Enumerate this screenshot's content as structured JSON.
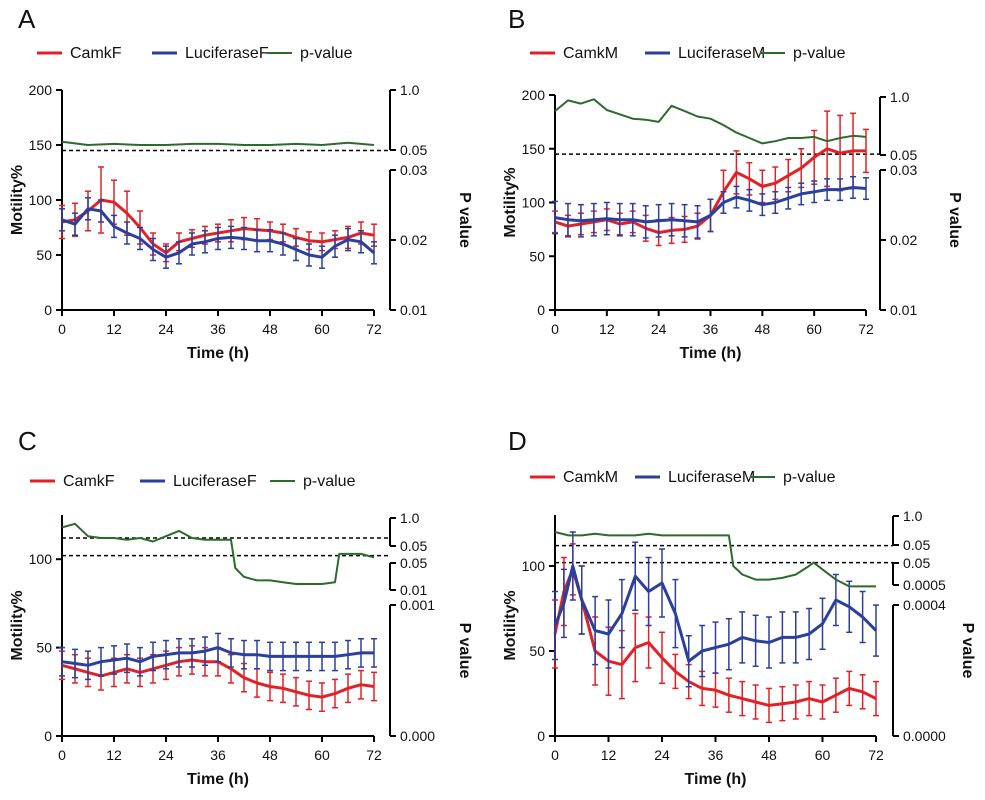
{
  "colors": {
    "camk": "#e02228",
    "luciferase": "#2b3f9e",
    "pvalue": "#2d6a2d",
    "axis": "#000000"
  },
  "chart_data": [
    {
      "panel": "A",
      "type": "line",
      "legend": [
        "CamkF",
        "LuciferaseF",
        "p-value"
      ],
      "xlabel": "Time (h)",
      "ylabel": "Motility%",
      "ylabel_right": "P value",
      "xlim": [
        0,
        72
      ],
      "xticks": [
        "0",
        "12",
        "24",
        "36",
        "48",
        "60",
        "72"
      ],
      "ylim": [
        0,
        200
      ],
      "yticks": [
        "0",
        "50",
        "100",
        "150",
        "200"
      ],
      "right_axis_upper_ticks": [
        "1.0",
        "0.05"
      ],
      "right_axis_lower_ticks": [
        "0.03",
        "0.02",
        "0.01"
      ],
      "series": [
        {
          "name": "CamkF",
          "x": [
            0,
            3,
            6,
            9,
            12,
            15,
            18,
            21,
            24,
            27,
            30,
            33,
            36,
            39,
            42,
            45,
            48,
            51,
            54,
            57,
            60,
            63,
            66,
            69,
            72
          ],
          "values": [
            80,
            82,
            90,
            100,
            98,
            88,
            75,
            60,
            52,
            62,
            65,
            68,
            70,
            72,
            74,
            73,
            72,
            70,
            66,
            63,
            62,
            64,
            66,
            70,
            68
          ],
          "err": [
            15,
            15,
            18,
            30,
            20,
            20,
            15,
            10,
            8,
            8,
            8,
            8,
            8,
            10,
            10,
            10,
            8,
            8,
            8,
            8,
            8,
            8,
            10,
            10,
            10
          ]
        },
        {
          "name": "LuciferaseF",
          "x": [
            0,
            3,
            6,
            9,
            12,
            15,
            18,
            21,
            24,
            27,
            30,
            33,
            36,
            39,
            42,
            45,
            48,
            51,
            54,
            57,
            60,
            63,
            66,
            69,
            72
          ],
          "values": [
            82,
            78,
            92,
            90,
            76,
            70,
            65,
            55,
            48,
            52,
            60,
            62,
            65,
            66,
            65,
            63,
            63,
            60,
            55,
            50,
            48,
            58,
            64,
            62,
            52
          ],
          "err": [
            10,
            10,
            10,
            10,
            10,
            10,
            10,
            10,
            10,
            10,
            10,
            10,
            10,
            10,
            10,
            10,
            10,
            10,
            10,
            10,
            10,
            10,
            10,
            10,
            10
          ]
        },
        {
          "name": "p-value",
          "x": [
            0,
            6,
            12,
            18,
            24,
            30,
            36,
            42,
            48,
            54,
            60,
            66,
            72
          ],
          "values": [
            153,
            150,
            151,
            150,
            150,
            151,
            151,
            150,
            150,
            151,
            150,
            152,
            150
          ]
        }
      ],
      "threshold": 145
    },
    {
      "panel": "B",
      "type": "line",
      "legend": [
        "CamkM",
        "LuciferaseM",
        "p-value"
      ],
      "xlabel": "Time (h)",
      "ylabel": "Motility%",
      "ylabel_right": "P value",
      "xlim": [
        0,
        72
      ],
      "xticks": [
        "0",
        "12",
        "24",
        "36",
        "48",
        "60",
        "72"
      ],
      "ylim": [
        0,
        200
      ],
      "yticks": [
        "0",
        "50",
        "100",
        "150",
        "200"
      ],
      "right_axis_upper_ticks": [
        "1.0",
        "0.05"
      ],
      "right_axis_lower_ticks": [
        "0.03",
        "0.02",
        "0.01"
      ],
      "series": [
        {
          "name": "CamkM",
          "x": [
            0,
            3,
            6,
            9,
            12,
            15,
            18,
            21,
            24,
            27,
            30,
            33,
            36,
            39,
            42,
            45,
            48,
            51,
            54,
            57,
            60,
            63,
            66,
            69,
            72
          ],
          "values": [
            82,
            78,
            80,
            82,
            84,
            80,
            82,
            76,
            72,
            74,
            75,
            78,
            88,
            110,
            128,
            122,
            115,
            118,
            125,
            132,
            142,
            150,
            146,
            148,
            148
          ],
          "err": [
            10,
            10,
            10,
            10,
            10,
            10,
            10,
            12,
            12,
            12,
            12,
            12,
            15,
            20,
            20,
            15,
            15,
            15,
            15,
            18,
            25,
            35,
            35,
            35,
            20
          ]
        },
        {
          "name": "LuciferaseM",
          "x": [
            0,
            3,
            6,
            9,
            12,
            15,
            18,
            21,
            24,
            27,
            30,
            33,
            36,
            39,
            42,
            45,
            48,
            51,
            54,
            57,
            60,
            63,
            66,
            69,
            72
          ],
          "values": [
            86,
            84,
            83,
            84,
            85,
            84,
            84,
            82,
            83,
            84,
            83,
            82,
            88,
            100,
            105,
            102,
            98,
            100,
            104,
            108,
            110,
            112,
            112,
            114,
            113
          ],
          "err": [
            15,
            15,
            15,
            15,
            15,
            15,
            15,
            15,
            15,
            15,
            15,
            15,
            15,
            10,
            10,
            10,
            10,
            10,
            10,
            10,
            10,
            10,
            10,
            10,
            10
          ]
        },
        {
          "name": "p-value",
          "x": [
            0,
            3,
            6,
            9,
            12,
            15,
            18,
            21,
            24,
            27,
            30,
            33,
            36,
            39,
            42,
            45,
            48,
            51,
            54,
            57,
            60,
            63,
            66,
            69,
            72
          ],
          "values": [
            185,
            195,
            192,
            196,
            186,
            182,
            178,
            177,
            175,
            190,
            185,
            180,
            178,
            172,
            165,
            160,
            155,
            157,
            160,
            160,
            161,
            157,
            160,
            162,
            161
          ]
        }
      ],
      "threshold": 145
    },
    {
      "panel": "C",
      "type": "line",
      "legend": [
        "CamkF",
        "LuciferaseF",
        "p-value"
      ],
      "xlabel": "Time (h)",
      "ylabel": "Motility%",
      "ylabel_right": "P value",
      "xlim": [
        0,
        72
      ],
      "xticks": [
        "0",
        "12",
        "24",
        "36",
        "48",
        "60",
        "72"
      ],
      "ylim": [
        0,
        125
      ],
      "yticks": [
        "0",
        "50",
        "100"
      ],
      "right_axis_upper_ticks": [
        "1.0",
        "0.05"
      ],
      "right_axis_mid_ticks": [
        "0.05",
        "0.01"
      ],
      "right_axis_lower_ticks": [
        "0.001",
        "0.000"
      ],
      "series": [
        {
          "name": "CamkF",
          "x": [
            0,
            3,
            6,
            9,
            12,
            15,
            18,
            21,
            24,
            27,
            30,
            33,
            36,
            39,
            42,
            45,
            48,
            51,
            54,
            57,
            60,
            63,
            66,
            69,
            72
          ],
          "values": [
            40,
            38,
            36,
            34,
            36,
            38,
            36,
            38,
            40,
            42,
            43,
            42,
            42,
            38,
            33,
            30,
            28,
            27,
            25,
            23,
            22,
            24,
            27,
            29,
            28
          ],
          "err": [
            8,
            8,
            8,
            8,
            8,
            8,
            8,
            8,
            8,
            8,
            8,
            8,
            8,
            8,
            8,
            8,
            8,
            8,
            8,
            8,
            8,
            8,
            8,
            8,
            8
          ]
        },
        {
          "name": "LuciferaseF",
          "x": [
            0,
            3,
            6,
            9,
            12,
            15,
            18,
            21,
            24,
            27,
            30,
            33,
            36,
            39,
            42,
            45,
            48,
            51,
            54,
            57,
            60,
            63,
            66,
            69,
            72
          ],
          "values": [
            42,
            41,
            40,
            42,
            43,
            44,
            42,
            45,
            46,
            47,
            47,
            48,
            50,
            47,
            46,
            46,
            45,
            45,
            45,
            45,
            45,
            45,
            46,
            47,
            47
          ],
          "err": [
            8,
            8,
            8,
            8,
            8,
            8,
            8,
            8,
            8,
            8,
            8,
            8,
            8,
            8,
            8,
            8,
            8,
            8,
            8,
            8,
            8,
            8,
            8,
            8,
            8
          ]
        },
        {
          "name": "p-value",
          "x": [
            0,
            3,
            6,
            9,
            12,
            15,
            18,
            21,
            24,
            27,
            30,
            33,
            36,
            39,
            40,
            42,
            45,
            48,
            51,
            54,
            57,
            60,
            63,
            64,
            66,
            69,
            72
          ],
          "values": [
            118,
            120,
            113,
            112,
            112,
            111,
            112,
            110,
            113,
            116,
            112,
            111,
            111,
            111,
            95,
            90,
            88,
            88,
            87,
            86,
            86,
            86,
            87,
            103,
            103,
            103,
            101
          ]
        }
      ],
      "threshold_upper": 112,
      "threshold_lower": 102
    },
    {
      "panel": "D",
      "type": "line",
      "legend": [
        "CamkM",
        "LuciferaseM",
        "p-value"
      ],
      "xlabel": "Time (h)",
      "ylabel": "Motility%",
      "ylabel_right": "P value",
      "xlim": [
        0,
        72
      ],
      "xticks": [
        "0",
        "12",
        "24",
        "36",
        "48",
        "60",
        "72"
      ],
      "ylim": [
        0,
        130
      ],
      "yticks": [
        "0",
        "50",
        "100"
      ],
      "right_axis_upper_ticks": [
        "1.0",
        "0.05"
      ],
      "right_axis_mid_ticks": [
        "0.05",
        "0.0005"
      ],
      "right_axis_lower_ticks": [
        "0.0004",
        "0.0000"
      ],
      "series": [
        {
          "name": "CamkM",
          "x": [
            0,
            2,
            4,
            6,
            9,
            12,
            15,
            18,
            21,
            24,
            27,
            30,
            33,
            36,
            39,
            42,
            45,
            48,
            51,
            54,
            57,
            60,
            63,
            66,
            69,
            72
          ],
          "values": [
            60,
            85,
            98,
            80,
            50,
            44,
            42,
            52,
            55,
            46,
            38,
            32,
            28,
            27,
            24,
            22,
            20,
            18,
            19,
            20,
            22,
            20,
            24,
            28,
            26,
            22
          ],
          "err": [
            20,
            20,
            15,
            20,
            20,
            20,
            20,
            20,
            15,
            15,
            10,
            10,
            10,
            10,
            10,
            10,
            10,
            10,
            10,
            10,
            10,
            10,
            10,
            10,
            10,
            10
          ]
        },
        {
          "name": "LuciferaseM",
          "x": [
            0,
            2,
            4,
            6,
            9,
            12,
            15,
            18,
            21,
            24,
            27,
            30,
            33,
            36,
            39,
            42,
            45,
            48,
            51,
            54,
            57,
            60,
            63,
            66,
            69,
            72
          ],
          "values": [
            65,
            78,
            100,
            80,
            62,
            60,
            72,
            94,
            85,
            90,
            72,
            44,
            50,
            52,
            54,
            58,
            56,
            55,
            58,
            58,
            60,
            66,
            80,
            76,
            70,
            62
          ],
          "err": [
            20,
            20,
            20,
            20,
            20,
            20,
            20,
            20,
            20,
            20,
            20,
            15,
            15,
            15,
            15,
            15,
            15,
            15,
            15,
            15,
            15,
            15,
            15,
            15,
            15,
            15
          ]
        },
        {
          "name": "p-value",
          "x": [
            0,
            3,
            6,
            9,
            12,
            15,
            18,
            21,
            24,
            27,
            30,
            33,
            36,
            39,
            40,
            42,
            45,
            48,
            51,
            54,
            57,
            58,
            60,
            63,
            66,
            69,
            72
          ],
          "values": [
            120,
            118,
            118,
            119,
            118,
            118,
            118,
            119,
            118,
            118,
            118,
            118,
            118,
            118,
            100,
            95,
            92,
            92,
            93,
            95,
            100,
            102,
            98,
            92,
            88,
            88,
            88
          ]
        }
      ],
      "threshold_upper": 112,
      "threshold_lower": 102
    }
  ]
}
